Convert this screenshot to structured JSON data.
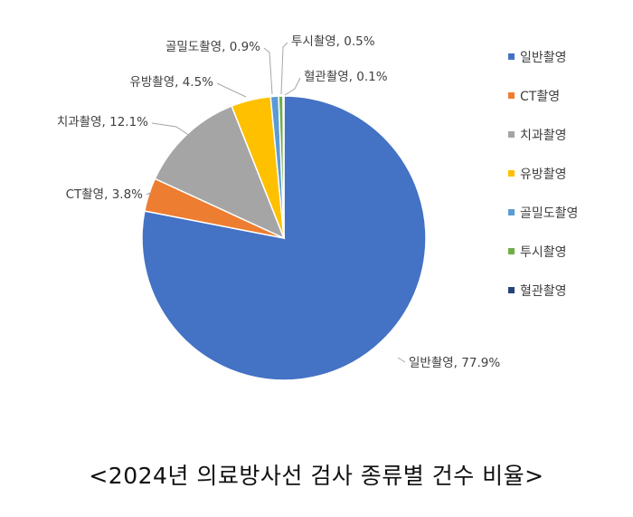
{
  "chart_data": {
    "type": "pie",
    "categories": [
      "일반촬영",
      "CT촬영",
      "치과촬영",
      "유방촬영",
      "골밀도촬영",
      "투시촬영",
      "혈관촬영"
    ],
    "values": [
      77.9,
      3.8,
      12.1,
      4.5,
      0.9,
      0.5,
      0.1
    ],
    "unit": "%",
    "colors": [
      "#4472C4",
      "#ED7D31",
      "#A5A5A5",
      "#FFC000",
      "#5B9BD5",
      "#70AD47",
      "#264478"
    ],
    "data_labels": [
      "일반촬영, 77.9%",
      "CT촬영, 3.8%",
      "치과촬영, 12.1%",
      "유방촬영, 4.5%",
      "골밀도촬영, 0.9%",
      "투시촬영, 0.5%",
      "혈관촬영, 0.1%"
    ],
    "legend": {
      "placement": "right",
      "entries": [
        "일반촬영",
        "CT촬영",
        "치과촬영",
        "유방촬영",
        "골밀도촬영",
        "투시촬영",
        "혈관촬영"
      ]
    }
  },
  "caption": "<2024년 의료방사선 검사 종류별 건수 비율>"
}
